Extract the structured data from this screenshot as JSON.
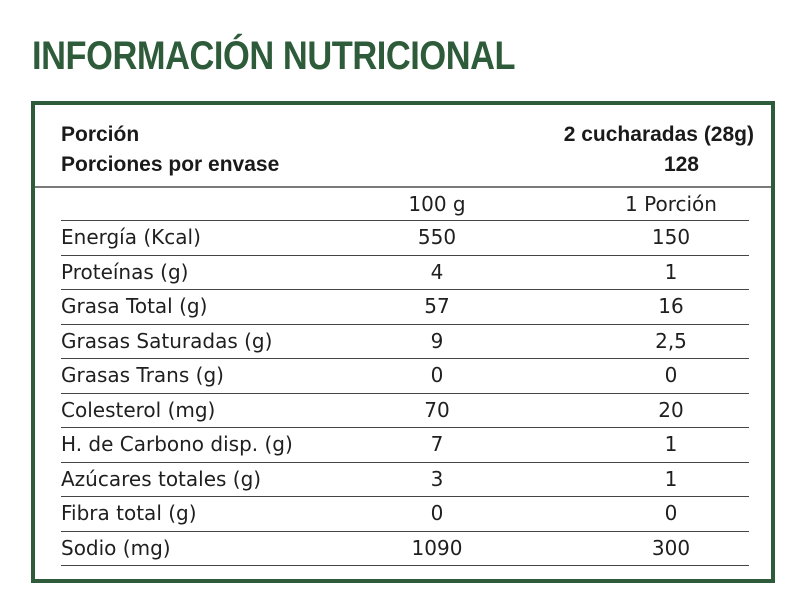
{
  "title": "INFORMACIÓN NUTRICIONAL",
  "serving": {
    "portion_label": "Porción",
    "portion_value": "2 cucharadas (28g)",
    "per_container_label": "Porciones por envase",
    "per_container_value": "128"
  },
  "table": {
    "columns": [
      "100 g",
      "1 Porción"
    ],
    "rows": [
      {
        "name": "Energía (Kcal)",
        "per100": "550",
        "perPortion": "150"
      },
      {
        "name": "Proteínas (g)",
        "per100": "4",
        "perPortion": "1"
      },
      {
        "name": "Grasa Total (g)",
        "per100": "57",
        "perPortion": "16"
      },
      {
        "name": "Grasas Saturadas (g)",
        "per100": "9",
        "perPortion": "2,5"
      },
      {
        "name": "Grasas Trans (g)",
        "per100": "0",
        "perPortion": "0"
      },
      {
        "name": "Colesterol (mg)",
        "per100": "70",
        "perPortion": "20"
      },
      {
        "name": "H. de Carbono disp. (g)",
        "per100": "7",
        "perPortion": "1"
      },
      {
        "name": "Azúcares totales (g)",
        "per100": "3",
        "perPortion": "1"
      },
      {
        "name": "Fibra total (g)",
        "per100": "0",
        "perPortion": "0"
      },
      {
        "name": "Sodio (mg)",
        "per100": "1090",
        "perPortion": "300"
      }
    ]
  },
  "colors": {
    "brand_green": "#2e5c3a",
    "text": "#1f1f1f"
  }
}
